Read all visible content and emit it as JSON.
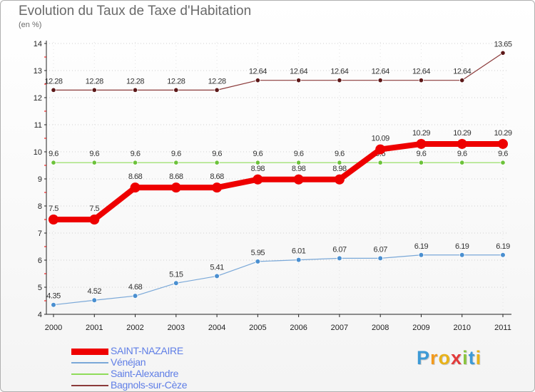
{
  "chart_data": {
    "type": "line",
    "title": "Evolution du Taux de Taxe d'Habitation",
    "ylabel": "(en %)",
    "xlabel": "",
    "ylim": [
      4,
      14
    ],
    "yticks": [
      4,
      5,
      6,
      7,
      8,
      9,
      10,
      11,
      12,
      13,
      14
    ],
    "categories": [
      "2000",
      "2001",
      "2002",
      "2003",
      "2004",
      "2005",
      "2006",
      "2007",
      "2008",
      "2009",
      "2010",
      "2011"
    ],
    "grid": "horizontal dotted",
    "legend_position": "bottom-left",
    "series": [
      {
        "name": "Bagnols-sur-Cèze",
        "color": "#8b3a3a",
        "marker_color": "#5c1818",
        "values": [
          12.28,
          12.28,
          12.28,
          12.28,
          12.28,
          12.64,
          12.64,
          12.64,
          12.64,
          12.64,
          12.64,
          13.65
        ],
        "labels": [
          "12.28",
          "12.28",
          "12.28",
          "12.28",
          "12.28",
          "12.64",
          "12.64",
          "12.64",
          "12.64",
          "12.64",
          "12.64",
          "13.65"
        ]
      },
      {
        "name": "Saint-Alexandre",
        "color": "#8fdc5a",
        "marker_color": "#6cc23a",
        "values": [
          9.6,
          9.6,
          9.6,
          9.6,
          9.6,
          9.6,
          9.6,
          9.6,
          9.6,
          9.6,
          9.6,
          9.6
        ],
        "labels": [
          "9.6",
          "9.6",
          "9.6",
          "9.6",
          "9.6",
          "9.6",
          "9.6",
          "9.6",
          "9.6",
          "9.6",
          "9.6",
          "9.6"
        ]
      },
      {
        "name": "Vénéjan",
        "color": "#7aa8d8",
        "marker_color": "#4a8fd0",
        "values": [
          4.35,
          4.52,
          4.68,
          5.15,
          5.41,
          5.95,
          6.01,
          6.07,
          6.07,
          6.19,
          6.19,
          6.19
        ],
        "labels": [
          "4.35",
          "4.52",
          "4.68",
          "5.15",
          "5.41",
          "5.95",
          "6.01",
          "6.07",
          "6.07",
          "6.19",
          "6.19",
          "6.19"
        ]
      },
      {
        "name": "SAINT-NAZAIRE",
        "color": "#ee0000",
        "marker_color": "#ee0000",
        "values": [
          7.5,
          7.5,
          8.68,
          8.68,
          8.68,
          8.98,
          8.98,
          8.98,
          10.09,
          10.29,
          10.29,
          10.29
        ],
        "labels": [
          "7.5",
          "7.5",
          "8.68",
          "8.68",
          "8.68",
          "8.98",
          "8.98",
          "8.98",
          "10.09",
          "10.29",
          "10.29",
          "10.29"
        ]
      }
    ],
    "legend": [
      "SAINT-NAZAIRE",
      "Vénéjan",
      "Saint-Alexandre",
      "Bagnols-sur-Cèze"
    ]
  },
  "logo": {
    "letters": [
      "P",
      "r",
      "o",
      "x",
      "i",
      "t",
      "i"
    ],
    "colors": [
      "#3d9ad6",
      "#f39a1c",
      "#e8b21a",
      "#e23b3b",
      "#8ac43f",
      "#3d9ad6",
      "#e8b21a"
    ]
  }
}
